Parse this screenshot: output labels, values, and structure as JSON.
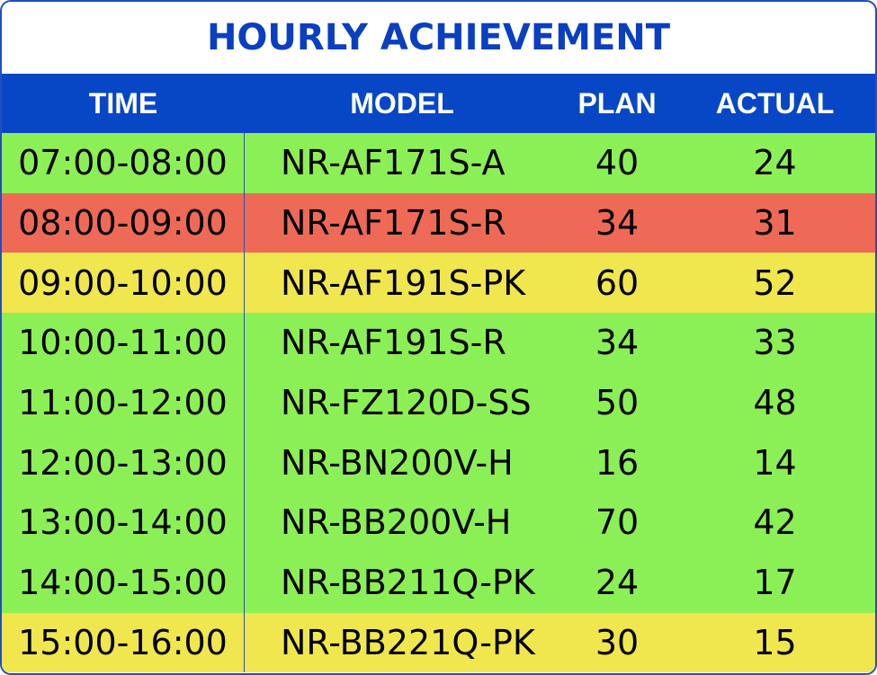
{
  "title": "HOURLY ACHIEVEMENT",
  "columns": {
    "time": "TIME",
    "model": "MODEL",
    "plan": "PLAN",
    "actual": "ACTUAL"
  },
  "colors": {
    "header_bg": "#0747c6",
    "title_text": "#0a3fc2",
    "status_green": "#8bf055",
    "status_red": "#ef6a56",
    "status_yellow": "#f0e64e"
  },
  "rows": [
    {
      "time": "07:00-08:00",
      "model": "NR-AF171S-A",
      "plan": "40",
      "actual": "24",
      "status": "green"
    },
    {
      "time": "08:00-09:00",
      "model": "NR-AF171S-R",
      "plan": "34",
      "actual": "31",
      "status": "red"
    },
    {
      "time": "09:00-10:00",
      "model": "NR-AF191S-PK",
      "plan": "60",
      "actual": "52",
      "status": "yellow"
    },
    {
      "time": "10:00-11:00",
      "model": "NR-AF191S-R",
      "plan": "34",
      "actual": "33",
      "status": "green"
    },
    {
      "time": "11:00-12:00",
      "model": "NR-FZ120D-SS",
      "plan": "50",
      "actual": "48",
      "status": "green"
    },
    {
      "time": "12:00-13:00",
      "model": "NR-BN200V-H",
      "plan": "16",
      "actual": "14",
      "status": "green"
    },
    {
      "time": "13:00-14:00",
      "model": "NR-BB200V-H",
      "plan": "70",
      "actual": "42",
      "status": "green"
    },
    {
      "time": "14:00-15:00",
      "model": "NR-BB211Q-PK",
      "plan": "24",
      "actual": "17",
      "status": "green"
    },
    {
      "time": "15:00-16:00",
      "model": "NR-BB221Q-PK",
      "plan": "30",
      "actual": "15",
      "status": "yellow"
    }
  ]
}
